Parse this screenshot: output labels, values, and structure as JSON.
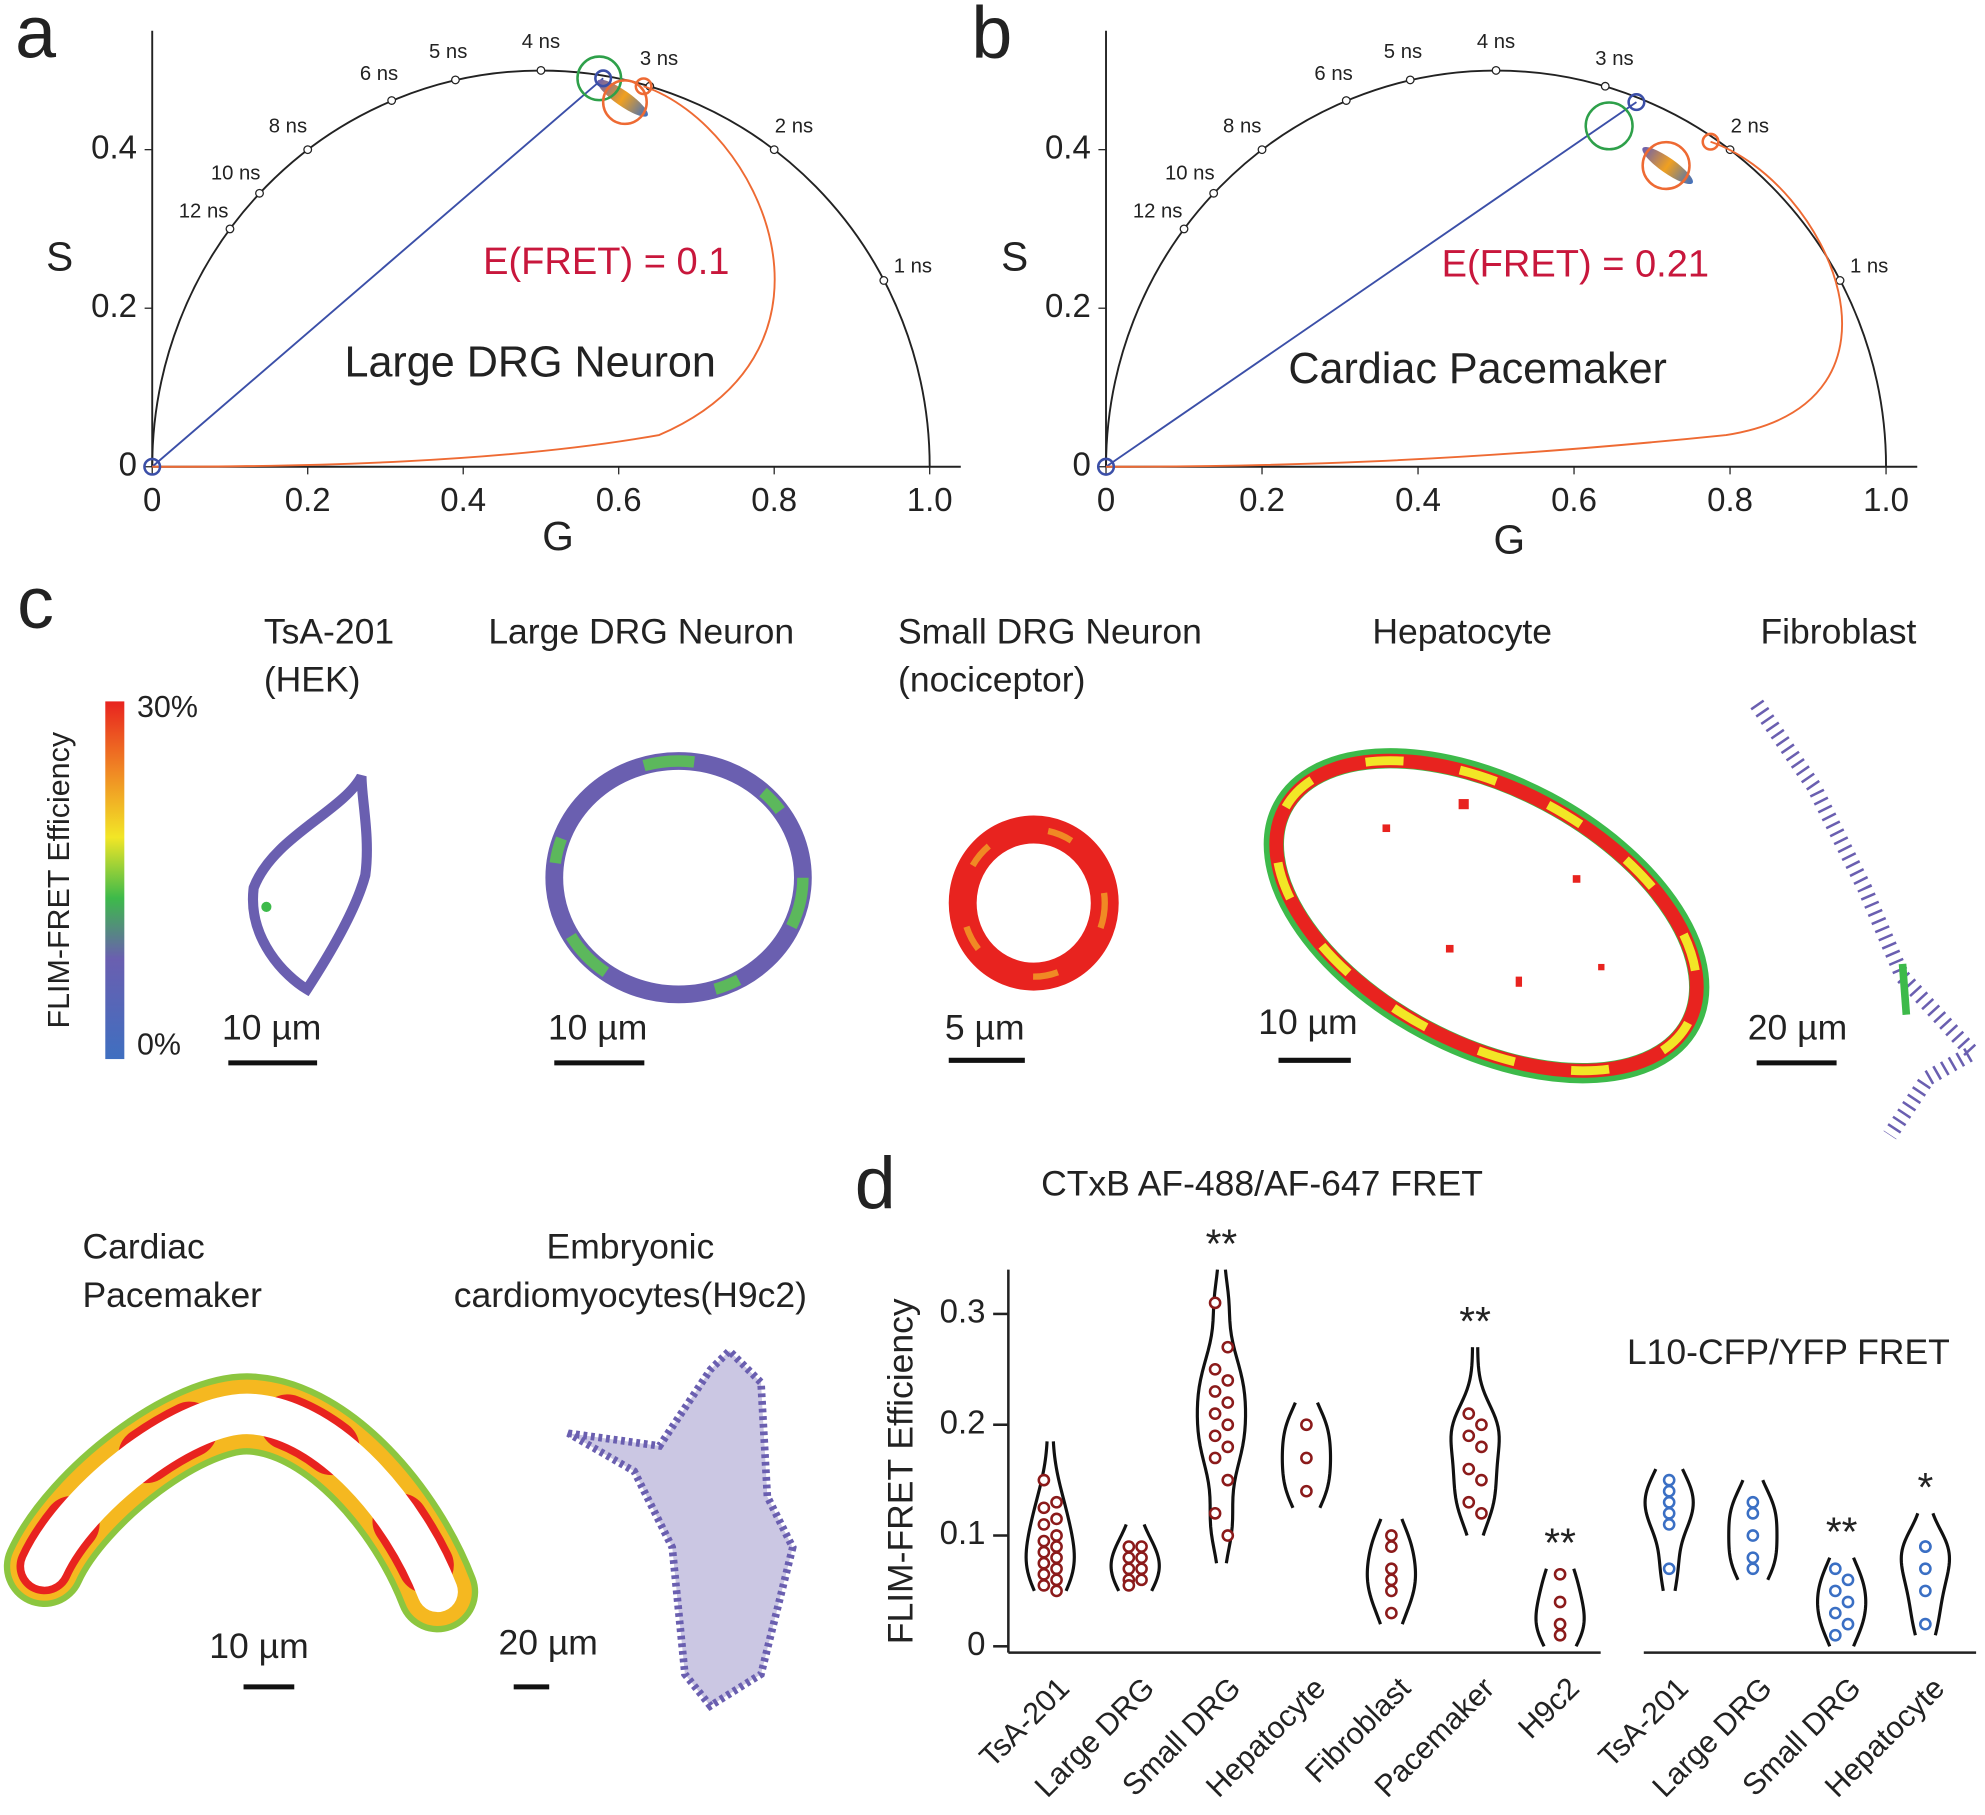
{
  "chart_data": [
    {
      "type": "phasor",
      "label": "a",
      "title": "Large DRG Neuron",
      "annotation": "E(FRET) = 0.1",
      "xlabel": "G",
      "ylabel": "S",
      "xlim": [
        0,
        1.04
      ],
      "ylim": [
        0,
        0.55
      ],
      "xticks": [
        0,
        0.2,
        0.4,
        0.6,
        0.8,
        {
          "value": 1,
          "label": "1.0"
        }
      ],
      "yticks": [
        0,
        0.2,
        0.4
      ],
      "lifetimes": [
        {
          "label": "1 ns",
          "g": 0.941,
          "s": 0.235
        },
        {
          "label": "2 ns",
          "g": 0.8,
          "s": 0.4
        },
        {
          "label": "3 ns",
          "g": 0.64,
          "s": 0.48
        },
        {
          "label": "4 ns",
          "g": 0.5,
          "s": 0.5
        },
        {
          "label": "5 ns",
          "g": 0.39,
          "s": 0.488
        },
        {
          "label": "6 ns",
          "g": 0.308,
          "s": 0.462
        },
        {
          "label": "8 ns",
          "g": 0.2,
          "s": 0.4
        },
        {
          "label": "10 ns",
          "g": 0.138,
          "s": 0.345
        },
        {
          "label": "12 ns",
          "g": 0.1,
          "s": 0.3
        }
      ],
      "cursors": [
        {
          "g": 0.58,
          "s": 0.49,
          "radius": 0.01,
          "color": "#3b4fa8"
        },
        {
          "g": 0.575,
          "s": 0.49,
          "radius": 0.028,
          "color": "#2ea04a"
        },
        {
          "g": 0.608,
          "s": 0.46,
          "radius": 0.028,
          "color": "#ee6a33"
        },
        {
          "g": 0.632,
          "s": 0.48,
          "radius": 0.01,
          "color": "#ee6a33"
        },
        {
          "g": 0,
          "s": 0,
          "radius": 0.01,
          "color": "#3b4fa8"
        }
      ],
      "cluster": {
        "g": 0.605,
        "s": 0.465
      }
    },
    {
      "type": "phasor",
      "label": "b",
      "title": "Cardiac Pacemaker",
      "annotation": "E(FRET) = 0.21",
      "xlabel": "G",
      "ylabel": "S",
      "xlim": [
        0,
        1.04
      ],
      "ylim": [
        0,
        0.55
      ],
      "xticks": [
        0,
        0.2,
        0.4,
        0.6,
        0.8,
        {
          "value": 1,
          "label": "1.0"
        }
      ],
      "yticks": [
        0,
        0.2,
        0.4
      ],
      "lifetimes": [
        {
          "label": "1 ns",
          "g": 0.941,
          "s": 0.235
        },
        {
          "label": "2 ns",
          "g": 0.8,
          "s": 0.4
        },
        {
          "label": "3 ns",
          "g": 0.64,
          "s": 0.48
        },
        {
          "label": "4 ns",
          "g": 0.5,
          "s": 0.5
        },
        {
          "label": "5 ns",
          "g": 0.39,
          "s": 0.488
        },
        {
          "label": "6 ns",
          "g": 0.308,
          "s": 0.462
        },
        {
          "label": "8 ns",
          "g": 0.2,
          "s": 0.4
        },
        {
          "label": "10 ns",
          "g": 0.138,
          "s": 0.345
        },
        {
          "label": "12 ns",
          "g": 0.1,
          "s": 0.3
        }
      ],
      "cursors": [
        {
          "g": 0.68,
          "s": 0.46,
          "radius": 0.01,
          "color": "#3b4fa8"
        },
        {
          "g": 0.645,
          "s": 0.43,
          "radius": 0.03,
          "color": "#2ea04a"
        },
        {
          "g": 0.718,
          "s": 0.38,
          "radius": 0.03,
          "color": "#ee6a33"
        },
        {
          "g": 0.775,
          "s": 0.41,
          "radius": 0.01,
          "color": "#ee6a33"
        },
        {
          "g": 0,
          "s": 0,
          "radius": 0.01,
          "color": "#3b4fa8"
        }
      ],
      "cluster": {
        "g": 0.72,
        "s": 0.38
      }
    },
    {
      "type": "violin",
      "label": "d",
      "ylabel": "FLIM-FRET Efficiency",
      "ylim": [
        0,
        0.34
      ],
      "yticks": [
        0,
        0.1,
        0.2,
        0.3
      ],
      "series": [
        {
          "name": "CTxB AF-488/AF-647 FRET",
          "color": "#8b1a1a",
          "categories": [
            "TsA-201",
            "Large DRG",
            "Small DRG",
            "Hepatocyte",
            "Fibroblast",
            "Pacemaker",
            "H9c2"
          ],
          "values": [
            [
              0.15,
              0.13,
              0.125,
              0.115,
              0.11,
              0.1,
              0.095,
              0.09,
              0.085,
              0.08,
              0.075,
              0.07,
              0.065,
              0.06,
              0.055,
              0.05
            ],
            [
              0.09,
              0.09,
              0.08,
              0.08,
              0.07,
              0.07,
              0.06,
              0.06,
              0.055
            ],
            [
              0.31,
              0.27,
              0.25,
              0.24,
              0.23,
              0.22,
              0.21,
              0.2,
              0.19,
              0.18,
              0.17,
              0.15,
              0.12,
              0.1
            ],
            [
              0.2,
              0.17,
              0.14
            ],
            [
              0.1,
              0.09,
              0.07,
              0.06,
              0.05,
              0.03
            ],
            [
              0.21,
              0.2,
              0.19,
              0.18,
              0.16,
              0.15,
              0.13,
              0.12
            ],
            [
              0.065,
              0.04,
              0.02,
              0.01
            ]
          ],
          "ranges": [
            [
              0.05,
              0.185
            ],
            [
              0.05,
              0.11
            ],
            [
              0.075,
              0.34
            ],
            [
              0.125,
              0.22
            ],
            [
              0.02,
              0.115
            ],
            [
              0.1,
              0.27
            ],
            [
              0,
              0.07
            ]
          ],
          "significance": [
            null,
            null,
            "**",
            null,
            null,
            "**",
            "**"
          ]
        },
        {
          "name": "L10-CFP/YFP FRET",
          "color": "#3a6fc4",
          "categories": [
            "TsA-201",
            "Large DRG",
            "Small DRG",
            "Hepatocyte"
          ],
          "values": [
            [
              0.15,
              0.14,
              0.13,
              0.12,
              0.11,
              0.07
            ],
            [
              0.13,
              0.12,
              0.1,
              0.08,
              0.07
            ],
            [
              0.07,
              0.06,
              0.05,
              0.04,
              0.03,
              0.02,
              0.01
            ],
            [
              0.09,
              0.09,
              0.07,
              0.05,
              0.02
            ]
          ],
          "ranges": [
            [
              0.05,
              0.16
            ],
            [
              0.06,
              0.15
            ],
            [
              0,
              0.08
            ],
            [
              0.01,
              0.12
            ]
          ],
          "significance": [
            null,
            null,
            "**",
            "*"
          ]
        }
      ]
    }
  ],
  "images": {
    "label": "c",
    "colorbar": {
      "title": "FLIM-FRET Efficiency",
      "lim": [
        0,
        30
      ],
      "ticks": [
        {
          "value": 30,
          "label": "30%"
        },
        {
          "value": 0,
          "label": "0%"
        }
      ]
    },
    "cells": [
      {
        "title": [
          "TsA-201",
          "(HEK)"
        ],
        "scale_bar": "10 µm"
      },
      {
        "title": [
          "Large DRG Neuron"
        ],
        "scale_bar": "10 µm"
      },
      {
        "title": [
          "Small DRG Neuron",
          "(nociceptor)"
        ],
        "scale_bar": "5 µm"
      },
      {
        "title": [
          "Hepatocyte"
        ],
        "scale_bar": "10 µm"
      },
      {
        "title": [
          "Fibroblast"
        ],
        "scale_bar": "20 µm"
      },
      {
        "title": [
          "Cardiac",
          "Pacemaker"
        ],
        "scale_bar": "10 µm"
      },
      {
        "title": [
          "Embryonic",
          "cardiomyocytes(H9c2)"
        ],
        "scale_bar": "20 µm"
      }
    ]
  }
}
